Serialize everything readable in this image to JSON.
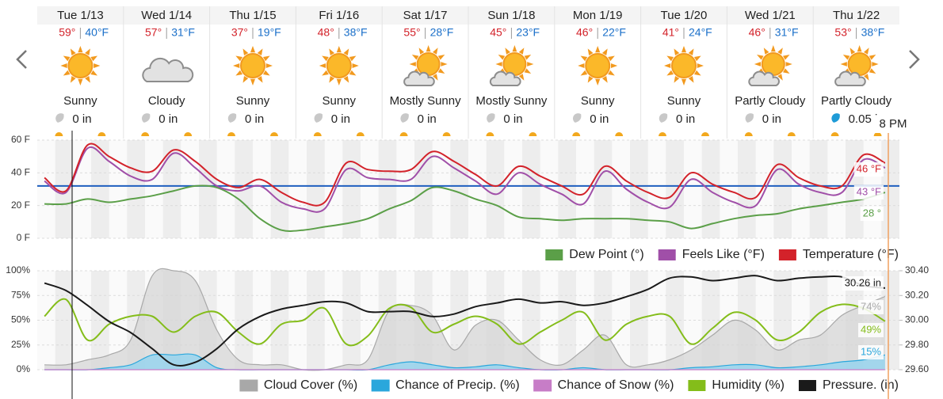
{
  "cursor_label": "8 PM",
  "days": [
    {
      "date": "Tue 1/13",
      "high": "59°",
      "low": "40°F",
      "icon": "sun",
      "condition": "Sunny",
      "precip": "0 in",
      "precip_color": "#c8c8c8"
    },
    {
      "date": "Wed 1/14",
      "high": "57°",
      "low": "31°F",
      "icon": "cloud",
      "condition": "Cloudy",
      "precip": "0 in",
      "precip_color": "#c8c8c8"
    },
    {
      "date": "Thu 1/15",
      "high": "37°",
      "low": "19°F",
      "icon": "sun",
      "condition": "Sunny",
      "precip": "0 in",
      "precip_color": "#c8c8c8"
    },
    {
      "date": "Fri 1/16",
      "high": "48°",
      "low": "38°F",
      "icon": "sun",
      "condition": "Sunny",
      "precip": "0 in",
      "precip_color": "#c8c8c8"
    },
    {
      "date": "Sat 1/17",
      "high": "55°",
      "low": "28°F",
      "icon": "sun-cloud",
      "condition": "Mostly Sunny",
      "precip": "0 in",
      "precip_color": "#c8c8c8"
    },
    {
      "date": "Sun 1/18",
      "high": "45°",
      "low": "23°F",
      "icon": "sun-cloud",
      "condition": "Mostly Sunny",
      "precip": "0 in",
      "precip_color": "#c8c8c8"
    },
    {
      "date": "Mon 1/19",
      "high": "46°",
      "low": "22°F",
      "icon": "sun",
      "condition": "Sunny",
      "precip": "0 in",
      "precip_color": "#c8c8c8"
    },
    {
      "date": "Tue 1/20",
      "high": "41°",
      "low": "24°F",
      "icon": "sun",
      "condition": "Sunny",
      "precip": "0 in",
      "precip_color": "#c8c8c8"
    },
    {
      "date": "Wed 1/21",
      "high": "46°",
      "low": "31°F",
      "icon": "sun-cloud",
      "condition": "Partly Cloudy",
      "precip": "0 in",
      "precip_color": "#c8c8c8"
    },
    {
      "date": "Thu 1/22",
      "high": "53°",
      "low": "38°F",
      "icon": "sun-cloud",
      "condition": "Partly Cloudy",
      "precip": "0.05 in",
      "precip_color": "#1e9bd7"
    }
  ],
  "chart_data": [
    {
      "type": "line",
      "xlim": [
        0,
        240
      ],
      "x": [
        2,
        8,
        14,
        20,
        26,
        32,
        38,
        44,
        50,
        56,
        62,
        68,
        74,
        80,
        86,
        92,
        98,
        104,
        110,
        116,
        122,
        128,
        134,
        140,
        146,
        152,
        158,
        164,
        170,
        176,
        182,
        188,
        194,
        200,
        206,
        212,
        218,
        224,
        230,
        236
      ],
      "ylim": [
        0,
        60
      ],
      "yticks": [
        {
          "value": 0,
          "label": "0 F"
        },
        {
          "value": 20,
          "label": "20 F"
        },
        {
          "value": 40,
          "label": "40 F"
        },
        {
          "value": 60,
          "label": "60 F"
        }
      ],
      "grid": true,
      "hline": {
        "value": 32,
        "color": "#1f5fbf"
      },
      "series": [
        {
          "name": "Dew Point (°)",
          "color": "#5b9f48",
          "end_label": "28 °",
          "values": [
            21,
            21,
            24,
            22,
            24,
            26,
            29,
            32,
            31,
            24,
            12,
            5,
            5,
            7,
            9,
            12,
            18,
            23,
            31,
            29,
            24,
            20,
            13,
            12,
            11,
            12,
            12,
            12,
            11,
            10,
            6,
            9,
            12,
            14,
            15,
            18,
            20,
            22,
            24,
            28
          ]
        },
        {
          "name": "Feels Like (°F)",
          "color": "#a04fa8",
          "end_label": "43 °F",
          "values": [
            35,
            28,
            55,
            47,
            38,
            36,
            52,
            43,
            32,
            29,
            32,
            22,
            18,
            18,
            42,
            37,
            36,
            36,
            50,
            43,
            35,
            27,
            40,
            33,
            27,
            21,
            41,
            30,
            22,
            19,
            36,
            28,
            22,
            20,
            42,
            33,
            28,
            28,
            48,
            43
          ]
        },
        {
          "name": "Temperature (°F)",
          "color": "#d3222a",
          "end_label": "46 °F",
          "values": [
            37,
            29,
            57,
            50,
            43,
            41,
            54,
            47,
            36,
            31,
            36,
            28,
            22,
            22,
            46,
            42,
            41,
            42,
            53,
            47,
            39,
            32,
            44,
            38,
            32,
            27,
            44,
            35,
            28,
            25,
            40,
            33,
            28,
            25,
            45,
            37,
            32,
            32,
            51,
            46
          ]
        }
      ]
    },
    {
      "type": "line",
      "xlim": [
        0,
        240
      ],
      "x": [
        2,
        8,
        14,
        20,
        26,
        32,
        38,
        44,
        50,
        56,
        62,
        68,
        74,
        80,
        86,
        92,
        98,
        104,
        110,
        116,
        122,
        128,
        134,
        140,
        146,
        152,
        158,
        164,
        170,
        176,
        182,
        188,
        194,
        200,
        206,
        212,
        218,
        224,
        230,
        236
      ],
      "ylim": [
        0,
        100
      ],
      "yticks": [
        {
          "value": 0,
          "label": "0%"
        },
        {
          "value": 25,
          "label": "25%"
        },
        {
          "value": 50,
          "label": "50%"
        },
        {
          "value": 75,
          "label": "75%"
        },
        {
          "value": 100,
          "label": "100%"
        }
      ],
      "y2lim": [
        29.6,
        30.4
      ],
      "y2ticks": [
        {
          "value": 29.6,
          "label": "29.60"
        },
        {
          "value": 29.8,
          "label": "29.80"
        },
        {
          "value": 30,
          "label": "30.00"
        },
        {
          "value": 30.2,
          "label": "30.20"
        },
        {
          "value": 30.4,
          "label": "30.40"
        }
      ],
      "grid": true,
      "series": [
        {
          "name": "Cloud Cover (%)",
          "color": "#a8a8a8",
          "fill": "#d6d6d6",
          "end_label": "74%",
          "values": [
            5,
            5,
            10,
            15,
            30,
            95,
            100,
            90,
            40,
            10,
            5,
            5,
            0,
            0,
            5,
            10,
            60,
            65,
            55,
            20,
            45,
            50,
            30,
            10,
            5,
            20,
            35,
            5,
            5,
            10,
            20,
            35,
            50,
            40,
            20,
            30,
            35,
            55,
            65,
            74
          ]
        },
        {
          "name": "Chance of Precip. (%)",
          "color": "#2aa7dc",
          "fill": "#8fd3f0",
          "end_label": "15%",
          "values": [
            0,
            0,
            0,
            2,
            5,
            15,
            15,
            15,
            2,
            0,
            0,
            0,
            0,
            0,
            0,
            0,
            5,
            8,
            5,
            2,
            3,
            5,
            2,
            0,
            0,
            2,
            0,
            0,
            0,
            0,
            2,
            3,
            5,
            5,
            2,
            3,
            5,
            8,
            10,
            15
          ]
        },
        {
          "name": "Chance of Snow (%)",
          "color": "#c77dc7",
          "fill": "#e6b3e6",
          "values": [
            0,
            0,
            0,
            0,
            0,
            0,
            0,
            0,
            0,
            0,
            0,
            0,
            0,
            0,
            0,
            0,
            0,
            0,
            0,
            0,
            0,
            0,
            0,
            0,
            0,
            0,
            0,
            0,
            0,
            0,
            0,
            0,
            0,
            0,
            0,
            0,
            0,
            0,
            0,
            0
          ]
        },
        {
          "name": "Humidity (%)",
          "color": "#84bd1a",
          "end_label": "49%",
          "values": [
            54,
            71,
            30,
            46,
            54,
            54,
            38,
            54,
            58,
            38,
            26,
            46,
            50,
            62,
            26,
            34,
            62,
            63,
            38,
            46,
            54,
            46,
            26,
            38,
            50,
            58,
            30,
            46,
            54,
            54,
            26,
            42,
            58,
            50,
            30,
            38,
            58,
            66,
            62,
            49
          ]
        },
        {
          "name": "Pressure. (in)",
          "color": "#1a1a1a",
          "axis": "y2",
          "end_label": "30.26 in",
          "values": [
            30.3,
            30.24,
            30.12,
            29.99,
            29.9,
            29.77,
            29.64,
            29.66,
            29.77,
            29.93,
            30.03,
            30.09,
            30.12,
            30.15,
            30.14,
            30.07,
            30.07,
            30.07,
            30.03,
            30.05,
            30.11,
            30.14,
            30.17,
            30.14,
            30.15,
            30.12,
            30.14,
            30.19,
            30.25,
            30.34,
            30.35,
            30.32,
            30.34,
            30.36,
            30.32,
            30.34,
            30.35,
            30.35,
            30.28,
            30.26
          ]
        }
      ]
    }
  ]
}
